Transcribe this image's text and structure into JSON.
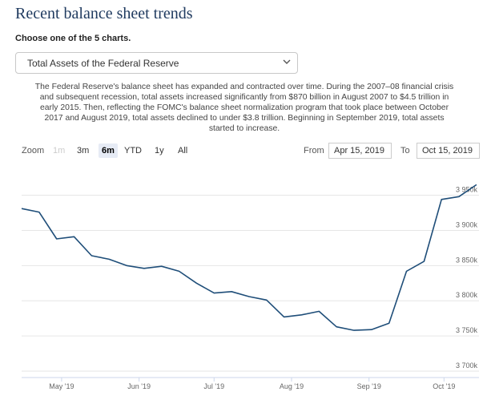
{
  "page": {
    "title": "Recent balance sheet trends",
    "choose_label": "Choose one of the 5 charts.",
    "dropdown_value": "Total Assets of the Federal Reserve",
    "description": "The Federal Reserve's balance sheet has expanded and contracted over time. During the 2007–08 financial crisis and subsequent recession, total assets increased significantly from $870 billion in August 2007 to $4.5 trillion in early 2015. Then, reflecting the FOMC's balance sheet normalization program that took place between October 2017 and August 2019, total assets declined to under $3.8 trillion. Beginning in September 2019, total assets started to increase."
  },
  "zoom": {
    "label": "Zoom",
    "buttons": [
      "1m",
      "3m",
      "6m",
      "YTD",
      "1y",
      "All"
    ],
    "active": "6m",
    "disabled": [
      "1m"
    ]
  },
  "range": {
    "from_label": "From",
    "from_value": "Apr 15, 2019",
    "to_label": "To",
    "to_value": "Oct 15, 2019"
  },
  "chart_data": {
    "type": "line",
    "title": "Total Assets of the Federal Reserve",
    "xlabel": "",
    "ylabel": "",
    "ylim": [
      3700,
      3970
    ],
    "y_ticks": [
      3700,
      3750,
      3800,
      3850,
      3900,
      3950
    ],
    "y_tick_labels": [
      "3 700k",
      "3 750k",
      "3 800k",
      "3 850k",
      "3 900k",
      "3 950k"
    ],
    "x_tick_labels": [
      "May '19",
      "Jun '19",
      "Jul '19",
      "Aug '19",
      "Sep '19",
      "Oct '19"
    ],
    "x_tick_days": [
      16,
      47,
      77,
      108,
      139,
      169
    ],
    "x_range_days": [
      0,
      183
    ],
    "series": [
      {
        "name": "Total Assets",
        "color": "#1f4e79",
        "x_days": [
          0,
          7,
          14,
          21,
          28,
          35,
          42,
          49,
          56,
          63,
          70,
          77,
          84,
          91,
          98,
          105,
          112,
          119,
          126,
          133,
          140,
          147,
          154,
          161,
          168,
          175,
          182
        ],
        "values": [
          3931,
          3926,
          3888,
          3891,
          3864,
          3859,
          3850,
          3846,
          3849,
          3842,
          3825,
          3811,
          3813,
          3806,
          3801,
          3777,
          3780,
          3785,
          3763,
          3758,
          3759,
          3768,
          3842,
          3856,
          3944,
          3948,
          3965
        ]
      }
    ]
  }
}
